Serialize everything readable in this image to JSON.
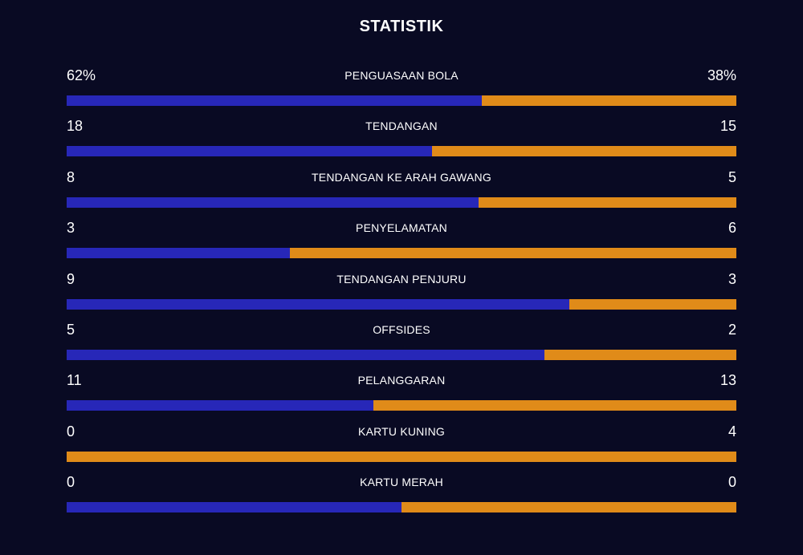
{
  "title": "STATISTIK",
  "colors": {
    "background": "#090a23",
    "home": "#2727b8",
    "away": "#e08b19",
    "text": "#ffffff"
  },
  "stats": [
    {
      "label": "PENGUASAAN BOLA",
      "home": "62%",
      "away": "38%",
      "home_share": 0.62
    },
    {
      "label": "TENDANGAN",
      "home": "18",
      "away": "15",
      "home_share": 0.545
    },
    {
      "label": "TENDANGAN KE ARAH GAWANG",
      "home": "8",
      "away": "5",
      "home_share": 0.615
    },
    {
      "label": "PENYELAMATAN",
      "home": "3",
      "away": "6",
      "home_share": 0.333
    },
    {
      "label": "TENDANGAN PENJURU",
      "home": "9",
      "away": "3",
      "home_share": 0.75
    },
    {
      "label": "OFFSIDES",
      "home": "5",
      "away": "2",
      "home_share": 0.714
    },
    {
      "label": "PELANGGARAN",
      "home": "11",
      "away": "13",
      "home_share": 0.458
    },
    {
      "label": "KARTU KUNING",
      "home": "0",
      "away": "4",
      "home_share": 0.0
    },
    {
      "label": "KARTU MERAH",
      "home": "0",
      "away": "0",
      "home_share": 0.5
    }
  ]
}
